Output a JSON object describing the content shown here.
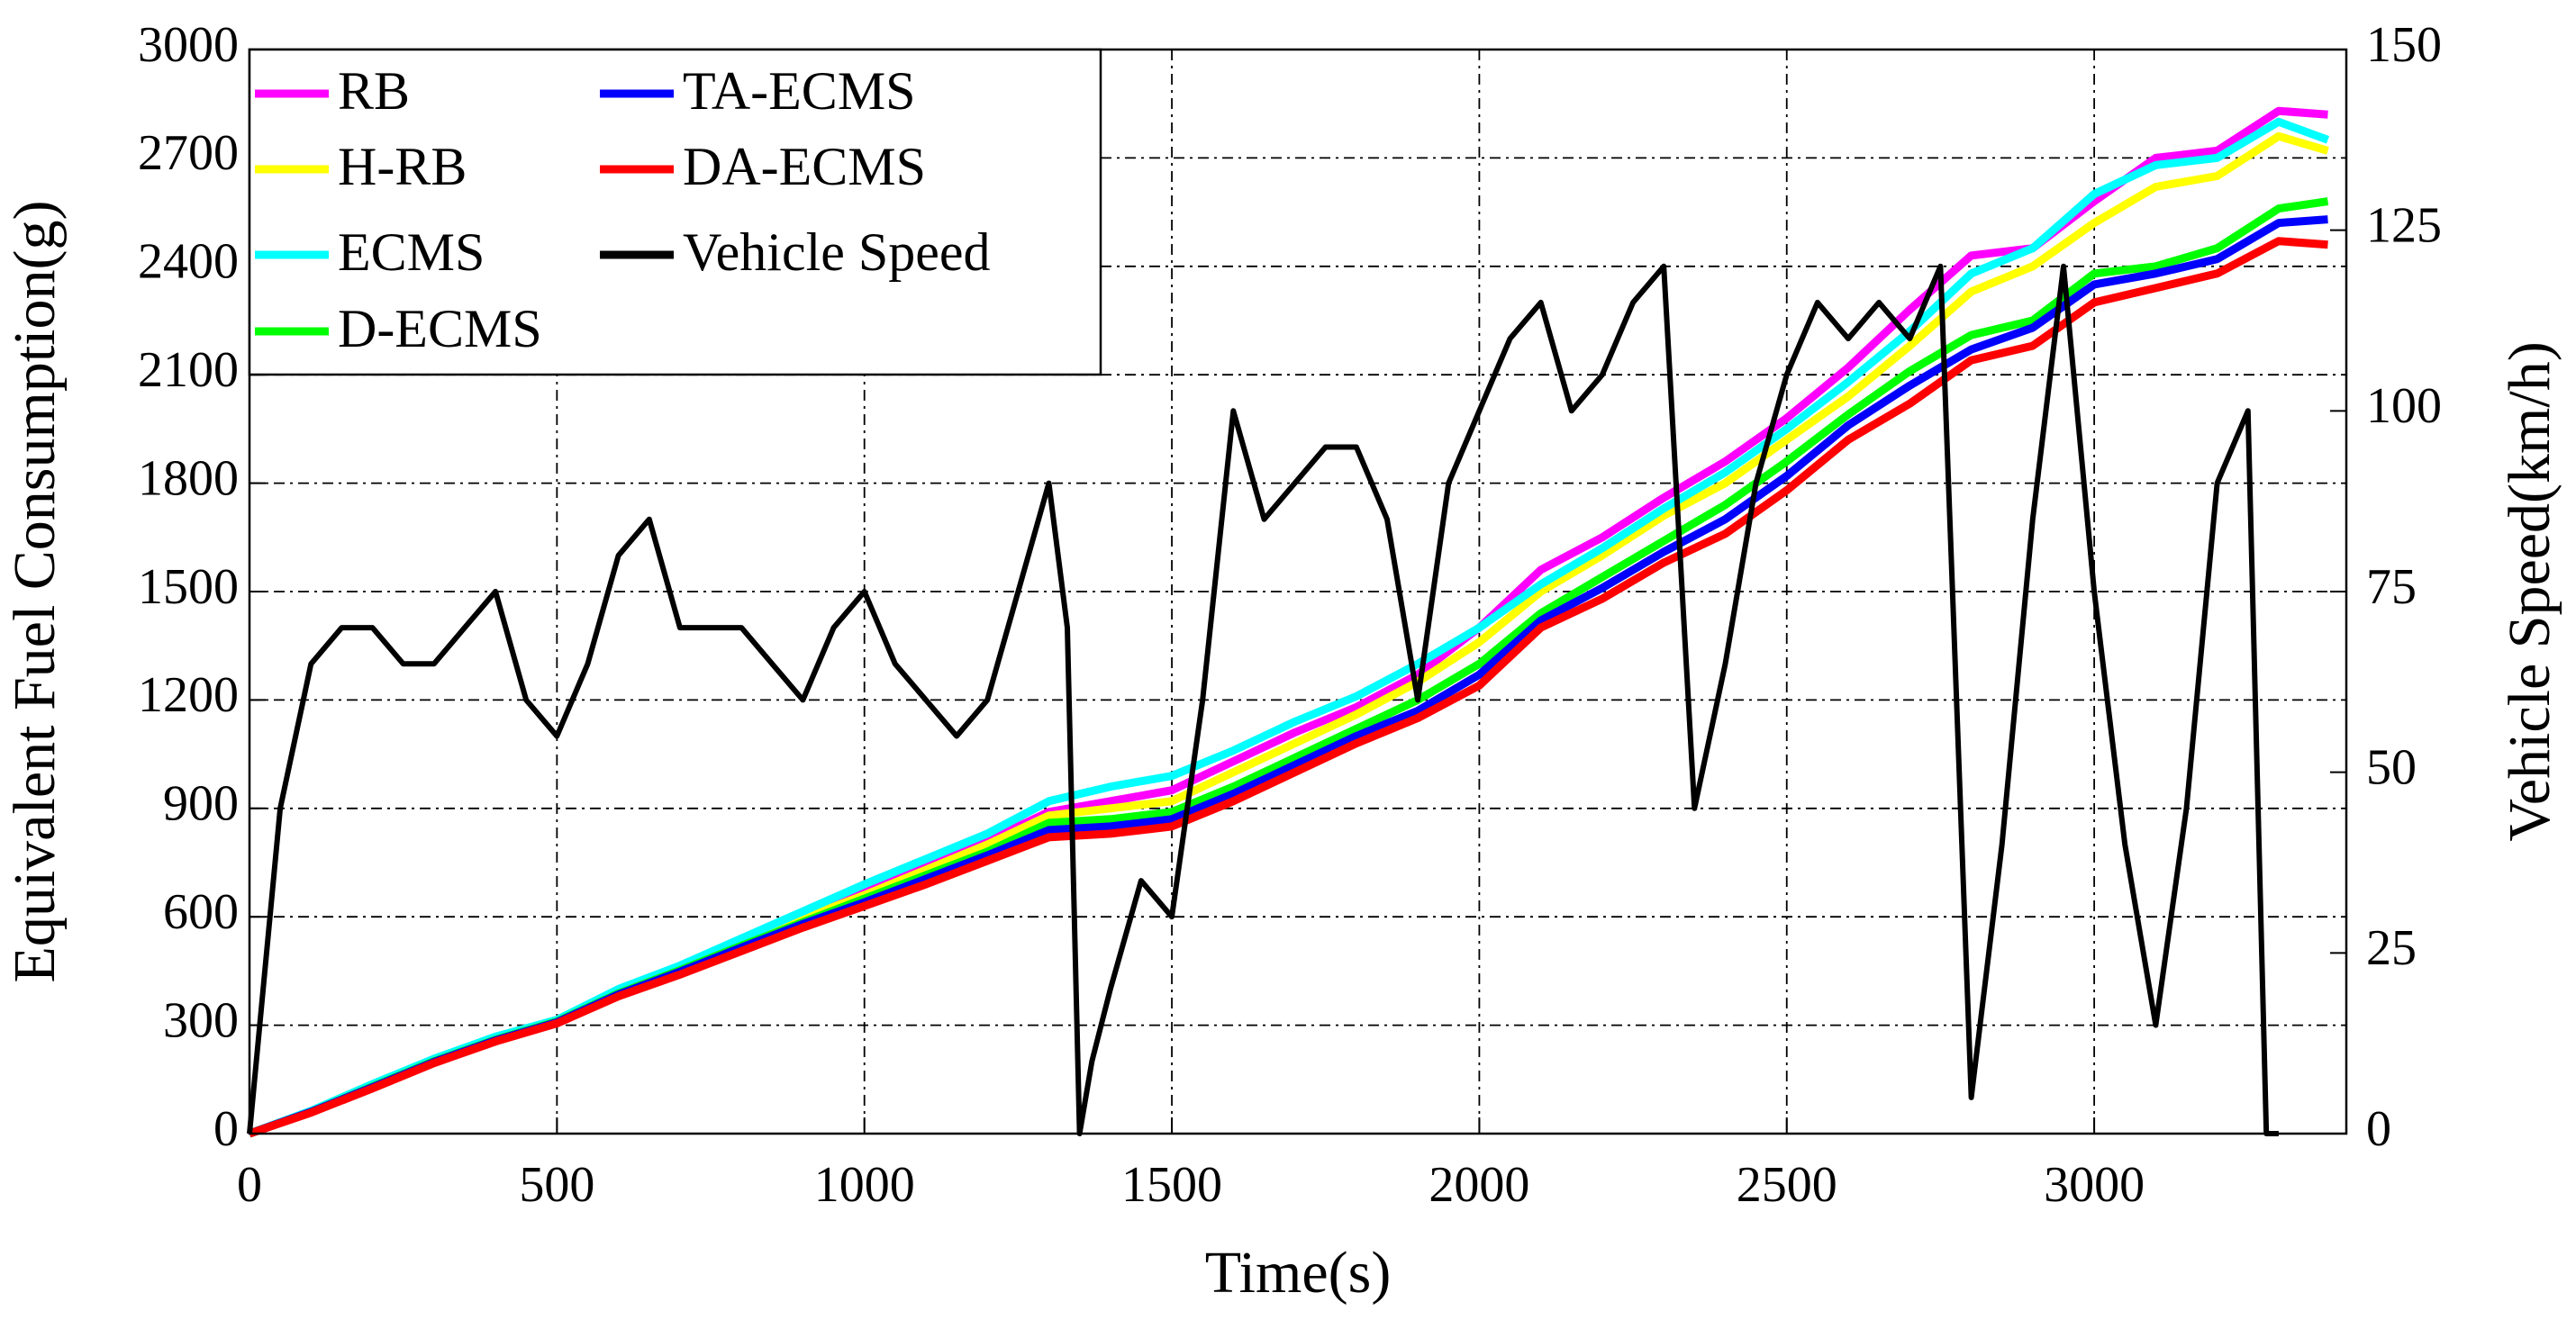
{
  "chart_data": {
    "type": "line",
    "x_label": "Time(s)",
    "y_label": "Equivalent Fuel Consumption(g)",
    "y2_label": "Vehicle Speed(km/h)",
    "xlim": [
      0,
      3410
    ],
    "xticks": [
      0,
      500,
      1000,
      1500,
      2000,
      2500,
      3000
    ],
    "ylim": [
      0,
      3000
    ],
    "yticks": [
      0,
      300,
      600,
      900,
      1200,
      1500,
      1800,
      2100,
      2400,
      2700,
      3000
    ],
    "y2lim": [
      0,
      150
    ],
    "y2ticks": [
      0,
      25,
      50,
      75,
      100,
      125,
      150
    ],
    "grid": true,
    "legend": "upper left",
    "x": [
      0,
      100,
      200,
      300,
      400,
      500,
      600,
      700,
      800,
      900,
      1000,
      1100,
      1200,
      1300,
      1400,
      1500,
      1600,
      1700,
      1800,
      1900,
      2000,
      2100,
      2200,
      2300,
      2400,
      2500,
      2600,
      2700,
      2800,
      2900,
      3000,
      3100,
      3200,
      3300,
      3380
    ],
    "series": [
      {
        "name": "RB",
        "color": "#ff00ff",
        "values": [
          0,
          62,
          135,
          205,
          265,
          312,
          395,
          460,
          530,
          600,
          670,
          740,
          810,
          890,
          920,
          950,
          1030,
          1110,
          1180,
          1270,
          1400,
          1560,
          1650,
          1760,
          1860,
          1980,
          2120,
          2280,
          2430,
          2450,
          2580,
          2700,
          2720,
          2830,
          2820
        ]
      },
      {
        "name": "H-RB",
        "color": "#ffff00",
        "values": [
          0,
          62,
          133,
          203,
          263,
          310,
          392,
          455,
          525,
          595,
          660,
          730,
          800,
          880,
          900,
          920,
          1000,
          1080,
          1160,
          1250,
          1360,
          1500,
          1600,
          1710,
          1800,
          1920,
          2040,
          2180,
          2330,
          2400,
          2520,
          2620,
          2650,
          2760,
          2720
        ]
      },
      {
        "name": "ECMS",
        "color": "#00ffff",
        "values": [
          0,
          63,
          137,
          207,
          268,
          315,
          400,
          465,
          540,
          615,
          690,
          760,
          830,
          920,
          960,
          990,
          1060,
          1140,
          1210,
          1300,
          1400,
          1520,
          1620,
          1730,
          1830,
          1950,
          2080,
          2220,
          2380,
          2450,
          2600,
          2680,
          2700,
          2800,
          2750
        ]
      },
      {
        "name": "D-ECMS",
        "color": "#00ff00",
        "values": [
          0,
          60,
          130,
          200,
          260,
          310,
          388,
          452,
          520,
          585,
          650,
          715,
          780,
          860,
          870,
          890,
          960,
          1040,
          1120,
          1200,
          1300,
          1440,
          1540,
          1640,
          1740,
          1860,
          1990,
          2110,
          2210,
          2250,
          2380,
          2400,
          2450,
          2560,
          2580
        ]
      },
      {
        "name": "TA-ECMS",
        "color": "#0000ff",
        "values": [
          0,
          60,
          128,
          198,
          258,
          308,
          385,
          448,
          515,
          580,
          640,
          705,
          770,
          840,
          850,
          870,
          940,
          1020,
          1100,
          1170,
          1270,
          1420,
          1510,
          1610,
          1700,
          1820,
          1960,
          2070,
          2170,
          2230,
          2350,
          2380,
          2420,
          2520,
          2530
        ]
      },
      {
        "name": "DA-ECMS",
        "color": "#ff0000",
        "values": [
          0,
          58,
          125,
          195,
          255,
          305,
          380,
          440,
          505,
          570,
          630,
          690,
          755,
          820,
          830,
          850,
          920,
          1000,
          1080,
          1150,
          1240,
          1400,
          1480,
          1580,
          1660,
          1780,
          1920,
          2020,
          2140,
          2180,
          2300,
          2340,
          2380,
          2470,
          2460
        ]
      },
      {
        "name": "Vehicle Speed",
        "color": "#000000",
        "axis": "y2",
        "x": [
          0,
          50,
          100,
          150,
          200,
          250,
          300,
          350,
          400,
          450,
          500,
          550,
          600,
          650,
          700,
          750,
          800,
          850,
          900,
          950,
          1000,
          1050,
          1100,
          1150,
          1200,
          1250,
          1300,
          1330,
          1350,
          1370,
          1400,
          1450,
          1500,
          1550,
          1600,
          1650,
          1700,
          1750,
          1800,
          1850,
          1900,
          1950,
          2000,
          2050,
          2100,
          2150,
          2200,
          2250,
          2300,
          2350,
          2400,
          2450,
          2500,
          2550,
          2600,
          2650,
          2700,
          2750,
          2800,
          2850,
          2900,
          2950,
          3000,
          3050,
          3100,
          3150,
          3200,
          3250,
          3280,
          3300
        ],
        "values": [
          0,
          45,
          65,
          70,
          70,
          65,
          65,
          70,
          75,
          60,
          55,
          65,
          80,
          85,
          70,
          70,
          70,
          65,
          60,
          70,
          75,
          65,
          60,
          55,
          60,
          75,
          90,
          70,
          0,
          10,
          20,
          35,
          30,
          60,
          100,
          85,
          90,
          95,
          95,
          85,
          60,
          90,
          100,
          110,
          115,
          100,
          105,
          115,
          120,
          45,
          65,
          90,
          105,
          115,
          110,
          115,
          110,
          120,
          5,
          40,
          85,
          120,
          75,
          40,
          15,
          45,
          90,
          100,
          0,
          0
        ]
      }
    ]
  }
}
